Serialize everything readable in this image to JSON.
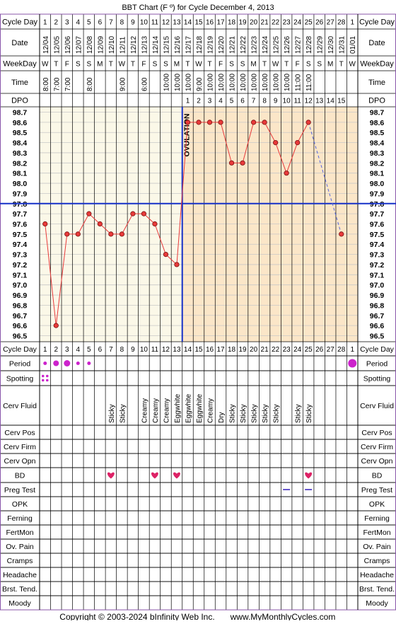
{
  "title": "BBT Chart (F º) for Cycle December 4, 2013",
  "footer": {
    "copyright": "Copyright © 2003-2024 bInfinity Web Inc.",
    "site": "www.MyMonthlyCycles.com"
  },
  "labels": {
    "cycle_day": "Cycle Day",
    "date": "Date",
    "weekday": "WeekDay",
    "time": "Time",
    "dpo": "DPO",
    "ovulation": "OVULATION"
  },
  "days": [
    1,
    2,
    3,
    4,
    5,
    6,
    7,
    8,
    9,
    10,
    11,
    12,
    13,
    14,
    15,
    16,
    17,
    18,
    19,
    20,
    21,
    22,
    23,
    24,
    25,
    26,
    27,
    28,
    1
  ],
  "dates": [
    "12/04",
    "12/05",
    "12/06",
    "12/07",
    "12/08",
    "12/09",
    "12/10",
    "12/11",
    "12/12",
    "12/13",
    "12/14",
    "12/15",
    "12/16",
    "12/17",
    "12/18",
    "12/19",
    "12/20",
    "12/21",
    "12/22",
    "12/23",
    "12/24",
    "12/25",
    "12/26",
    "12/27",
    "12/28",
    "12/29",
    "12/30",
    "12/31",
    "01/01"
  ],
  "weekdays": [
    "W",
    "T",
    "F",
    "S",
    "S",
    "M",
    "T",
    "W",
    "T",
    "F",
    "S",
    "S",
    "M",
    "T",
    "W",
    "T",
    "F",
    "S",
    "S",
    "M",
    "T",
    "W",
    "T",
    "F",
    "S",
    "S",
    "M",
    "T",
    "W"
  ],
  "times": [
    "8:00",
    "7:00",
    "7:00",
    "",
    "8:00",
    "",
    "",
    "9:00",
    "",
    "6:00",
    "",
    "10:00",
    "10:00",
    "10:00",
    "9:00",
    "10:00",
    "10:00",
    "10:00",
    "10:00",
    "10:00",
    "10:00",
    "10:00",
    "10:00",
    "11:00",
    "11:00",
    "",
    "",
    "",
    ""
  ],
  "dpo": [
    "",
    "",
    "",
    "",
    "",
    "",
    "",
    "",
    "",
    "",
    "",
    "",
    "",
    "1",
    "2",
    "3",
    "4",
    "5",
    "6",
    "7",
    "8",
    "9",
    "10",
    "11",
    "12",
    "13",
    "14",
    "15",
    ""
  ],
  "chart_data": {
    "type": "line",
    "title": "BBT Chart (F º) for Cycle December 4, 2013",
    "xlabel": "Cycle Day",
    "ylabel": "",
    "ylim": [
      96.5,
      98.7
    ],
    "y_ticks": [
      "98.7",
      "98.6",
      "98.5",
      "98.4",
      "98.3",
      "98.2",
      "98.1",
      "98.0",
      "97.9",
      "97.8",
      "97.7",
      "97.6",
      "97.5",
      "97.4",
      "97.3",
      "97.2",
      "97.1",
      "97.0",
      "96.9",
      "96.8",
      "96.7",
      "96.6",
      "96.5"
    ],
    "series": [
      {
        "values": [
          97.6,
          96.6,
          97.5,
          97.5,
          97.7,
          97.6,
          97.5,
          97.5,
          97.7,
          97.7,
          97.6,
          97.3,
          97.2,
          98.6,
          98.6,
          98.6,
          98.6,
          98.2,
          98.2,
          98.6,
          98.6,
          98.4,
          98.1,
          98.4,
          98.6,
          null,
          null,
          97.5,
          null
        ]
      }
    ],
    "coverline": 97.8,
    "ovulation_day": 13,
    "grid": true,
    "colors": {
      "line": "#e83a3a",
      "marker": "#e83a3a",
      "coverline": "#1530c8",
      "ovulation_line": "#1530c8",
      "dashed": "#5566dd",
      "pre_bg": "#fbf8e8",
      "post_bg": "#fbe6c8"
    }
  },
  "symptoms": {
    "cycle_day": {
      "label": "Cycle Day",
      "type": "days"
    },
    "rows": [
      {
        "label": "Period",
        "type": "dots",
        "values": {
          "1": 1,
          "2": 2,
          "3": 3,
          "4": 1,
          "5": 1,
          "29": 4
        }
      },
      {
        "label": "Spotting",
        "type": "spots",
        "values": {
          "1": 1
        }
      },
      {
        "label": "Cerv Fluid",
        "type": "text",
        "values": {
          "7": "Sticky",
          "8": "Sticky",
          "10": "Creamy",
          "11": "Creamy",
          "12": "Creamy",
          "13": "Eggwhite",
          "14": "Eggwhite",
          "15": "Eggwhite",
          "16": "Creamy",
          "17": "Dry",
          "18": "Sticky",
          "19": "Sticky",
          "20": "Sticky",
          "21": "Sticky",
          "22": "Sticky",
          "24": "Sticky",
          "25": "Sticky"
        }
      },
      {
        "label": "Cerv Pos",
        "type": "empty",
        "values": {}
      },
      {
        "label": "Cerv Firm",
        "type": "empty",
        "values": {}
      },
      {
        "label": "Cerv Opn",
        "type": "empty",
        "values": {}
      },
      {
        "label": "BD",
        "type": "heart",
        "values": {
          "7": 1,
          "11": 1,
          "13": 1,
          "25": 1
        }
      },
      {
        "label": "Preg Test",
        "type": "dash",
        "values": {
          "23": 1,
          "25": 1
        }
      },
      {
        "label": "OPK",
        "type": "empty",
        "values": {}
      },
      {
        "label": "Ferning",
        "type": "empty",
        "values": {}
      },
      {
        "label": "FertMon",
        "type": "empty",
        "values": {}
      },
      {
        "label": "Ov. Pain",
        "type": "empty",
        "values": {}
      },
      {
        "label": "Cramps",
        "type": "empty",
        "values": {}
      },
      {
        "label": "Headache",
        "type": "empty",
        "values": {}
      },
      {
        "label": "Brst. Tend.",
        "type": "empty",
        "values": {}
      },
      {
        "label": "Moody",
        "type": "empty",
        "values": {}
      }
    ]
  },
  "colors": {
    "border": "#8855aa",
    "grid": "#c8c8c8",
    "period": "#cc22cc",
    "heart": "#dd2266",
    "dash": "#6655cc"
  },
  "icons": {
    "bd": "heart-icon",
    "period": "dot-icon",
    "spotting": "small-dots-icon",
    "preg_test": "dash-icon"
  }
}
